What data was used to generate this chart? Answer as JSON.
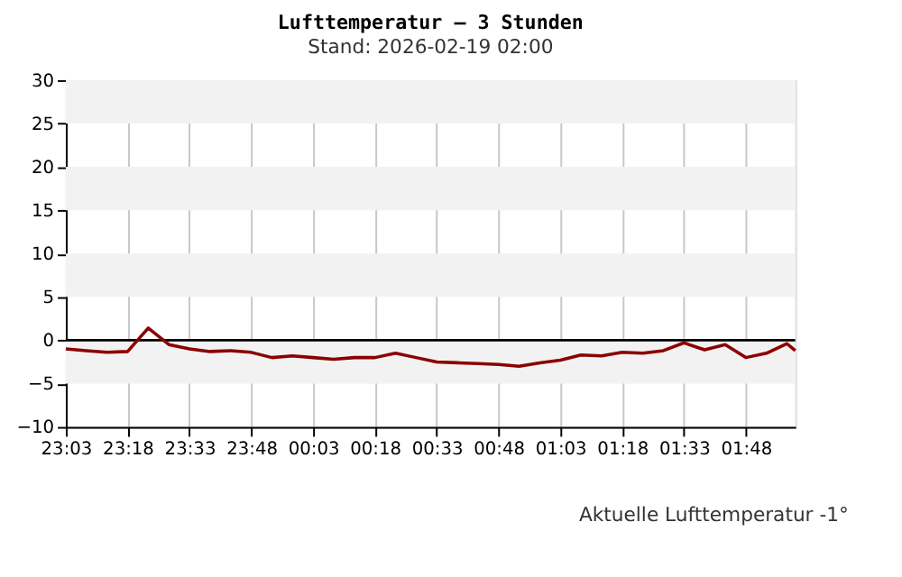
{
  "chart_data": {
    "type": "line",
    "title": "Lufttemperatur – 3 Stunden",
    "subtitle": "Stand: 2026-02-19 02:00",
    "x": [
      "2026-02-18T23:03",
      "2026-02-18T23:08",
      "2026-02-18T23:13",
      "2026-02-18T23:18",
      "2026-02-18T23:23",
      "2026-02-18T23:28",
      "2026-02-18T23:33",
      "2026-02-18T23:38",
      "2026-02-18T23:43",
      "2026-02-18T23:48",
      "2026-02-18T23:53",
      "2026-02-18T23:58",
      "2026-02-19T00:03",
      "2026-02-19T00:08",
      "2026-02-19T00:13",
      "2026-02-19T00:18",
      "2026-02-19T00:23",
      "2026-02-19T00:28",
      "2026-02-19T00:33",
      "2026-02-19T00:38",
      "2026-02-19T00:43",
      "2026-02-19T00:48",
      "2026-02-19T00:53",
      "2026-02-19T00:58",
      "2026-02-19T01:03",
      "2026-02-19T01:08",
      "2026-02-19T01:13",
      "2026-02-19T01:18",
      "2026-02-19T01:23",
      "2026-02-19T01:28",
      "2026-02-19T01:33",
      "2026-02-19T01:38",
      "2026-02-19T01:43",
      "2026-02-19T01:48",
      "2026-02-19T01:53",
      "2026-02-19T01:58",
      "2026-02-19T02:00"
    ],
    "series": [
      {
        "color": "#8b0000",
        "values": [
          -1.0,
          -1.2,
          -1.4,
          -1.3,
          1.4,
          -0.5,
          -1.0,
          -1.3,
          -1.2,
          -1.4,
          -2.0,
          -1.8,
          -2.0,
          -2.2,
          -2.0,
          -2.0,
          -1.5,
          -2.0,
          -2.5,
          -2.6,
          -2.7,
          -2.8,
          -3.0,
          -2.6,
          -2.3,
          -1.7,
          -1.8,
          -1.4,
          -1.5,
          -1.2,
          -0.3,
          -1.1,
          -0.5,
          -2.0,
          -1.5,
          -0.4,
          -1.2
        ]
      }
    ],
    "xlim": [
      "2026-02-18T23:03",
      "2026-02-19T02:00"
    ],
    "xticks": [
      {
        "value": "2026-02-18T23:03",
        "label": "23:03"
      },
      {
        "value": "2026-02-18T23:18",
        "label": "23:18"
      },
      {
        "value": "2026-02-18T23:33",
        "label": "23:33"
      },
      {
        "value": "2026-02-18T23:48",
        "label": "23:48"
      },
      {
        "value": "2026-02-19T00:03",
        "label": "00:03"
      },
      {
        "value": "2026-02-19T00:18",
        "label": "00:18"
      },
      {
        "value": "2026-02-19T00:33",
        "label": "00:33"
      },
      {
        "value": "2026-02-19T00:48",
        "label": "00:48"
      },
      {
        "value": "2026-02-19T01:03",
        "label": "01:03"
      },
      {
        "value": "2026-02-19T01:18",
        "label": "01:18"
      },
      {
        "value": "2026-02-19T01:33",
        "label": "01:33"
      },
      {
        "value": "2026-02-19T01:48",
        "label": "01:48"
      }
    ],
    "ylim": [
      -10,
      30
    ],
    "yticks": [
      -10,
      -5,
      0,
      5,
      10,
      15,
      20,
      25,
      30
    ],
    "ref_lines": [
      {
        "axis": "y",
        "value": 0,
        "color": "#000000"
      }
    ],
    "bands": [
      {
        "axis": "y",
        "from": -5,
        "to": 0,
        "color": "#f2f2f2"
      },
      {
        "axis": "y",
        "from": 5,
        "to": 10,
        "color": "#f2f2f2"
      },
      {
        "axis": "y",
        "from": 15,
        "to": 20,
        "color": "#f2f2f2"
      },
      {
        "axis": "y",
        "from": 25,
        "to": 30,
        "color": "#f2f2f2"
      }
    ],
    "grid": "x",
    "legend": false,
    "marker": "none",
    "line_style": "solid",
    "annotations": [
      "Aktuelle Lufttemperatur -1°"
    ]
  }
}
